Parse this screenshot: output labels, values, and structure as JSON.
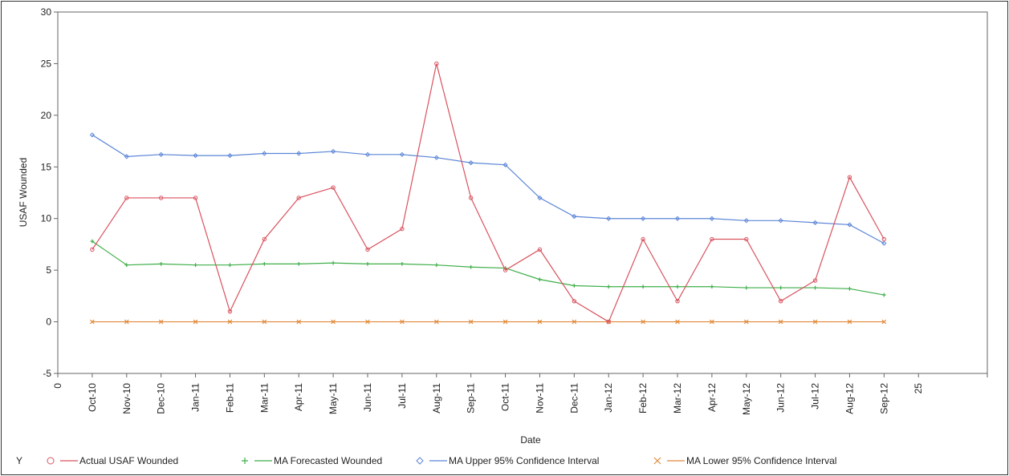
{
  "chart_data": {
    "type": "line",
    "xlabel": "Date",
    "ylabel": "USAF Wounded",
    "ylim": [
      -5,
      30
    ],
    "yticks": [
      "-5",
      "0",
      "5",
      "10",
      "15",
      "20",
      "25",
      "30"
    ],
    "xlim": [
      0,
      27
    ],
    "x_numeric_ticks": [
      "0",
      "25"
    ],
    "categories": [
      "Oct-10",
      "Nov-10",
      "Dec-10",
      "Jan-11",
      "Feb-11",
      "Mar-11",
      "Apr-11",
      "May-11",
      "Jun-11",
      "Jul-11",
      "Aug-11",
      "Sep-11",
      "Oct-11",
      "Nov-11",
      "Dec-11",
      "Jan-12",
      "Feb-12",
      "Mar-12",
      "Apr-12",
      "May-12",
      "Jun-12",
      "Jul-12",
      "Aug-12",
      "Sep-12"
    ],
    "legend_title": "Y",
    "legend_position": "bottom",
    "grid": false,
    "series": [
      {
        "name": "Actual USAF Wounded",
        "color": "#d9525e",
        "marker": "circle",
        "values": [
          7,
          12,
          12,
          12,
          1,
          8,
          12,
          13,
          7,
          9,
          25,
          12,
          5,
          7,
          2,
          0,
          8,
          2,
          8,
          8,
          2,
          4,
          14,
          8
        ]
      },
      {
        "name": "MA Forecasted Wounded",
        "color": "#3fae49",
        "marker": "plus",
        "values": [
          7.8,
          5.5,
          5.6,
          5.5,
          5.5,
          5.6,
          5.6,
          5.7,
          5.6,
          5.6,
          5.5,
          5.3,
          5.2,
          4.1,
          3.5,
          3.4,
          3.4,
          3.4,
          3.4,
          3.3,
          3.3,
          3.3,
          3.2,
          2.6
        ]
      },
      {
        "name": "MA Upper 95% Confidence Interval",
        "color": "#5b85d6",
        "marker": "diamond",
        "values": [
          18.1,
          16.0,
          16.2,
          16.1,
          16.1,
          16.3,
          16.3,
          16.5,
          16.2,
          16.2,
          15.9,
          15.4,
          15.2,
          12.0,
          10.2,
          10.0,
          10.0,
          10.0,
          10.0,
          9.8,
          9.8,
          9.6,
          9.4,
          7.6
        ]
      },
      {
        "name": "MA Lower 95% Confidence Interval",
        "color": "#e0893a",
        "marker": "x",
        "values": [
          0,
          0,
          0,
          0,
          0,
          0,
          0,
          0,
          0,
          0,
          0,
          0,
          0,
          0,
          0,
          0,
          0,
          0,
          0,
          0,
          0,
          0,
          0,
          0
        ]
      }
    ]
  }
}
